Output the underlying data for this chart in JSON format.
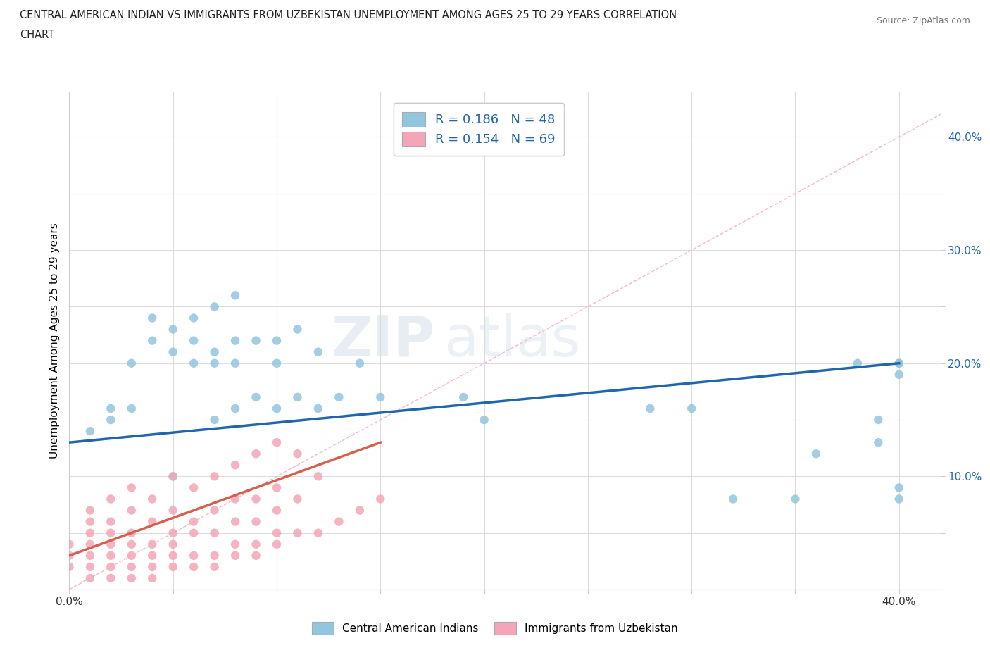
{
  "title_line1": "CENTRAL AMERICAN INDIAN VS IMMIGRANTS FROM UZBEKISTAN UNEMPLOYMENT AMONG AGES 25 TO 29 YEARS CORRELATION",
  "title_line2": "CHART",
  "source_text": "Source: ZipAtlas.com",
  "ylabel": "Unemployment Among Ages 25 to 29 years",
  "xlim": [
    0.0,
    0.42
  ],
  "ylim": [
    0.0,
    0.44
  ],
  "xticks": [
    0.0,
    0.05,
    0.1,
    0.15,
    0.2,
    0.25,
    0.3,
    0.35,
    0.4
  ],
  "yticks": [
    0.0,
    0.05,
    0.1,
    0.15,
    0.2,
    0.25,
    0.3,
    0.35,
    0.4
  ],
  "blue_color": "#92c5de",
  "pink_color": "#f4a6b8",
  "blue_line_color": "#2166ac",
  "pink_line_color": "#d6604d",
  "diag_line_color": "#f4a6b8",
  "legend_blue_label": "R = 0.186   N = 48",
  "legend_pink_label": "R = 0.154   N = 69",
  "bottom_legend_blue": "Central American Indians",
  "bottom_legend_pink": "Immigrants from Uzbekistan",
  "watermark_zip": "ZIP",
  "watermark_atlas": "atlas",
  "blue_scatter_x": [
    0.01,
    0.02,
    0.02,
    0.03,
    0.03,
    0.04,
    0.04,
    0.05,
    0.05,
    0.05,
    0.06,
    0.06,
    0.06,
    0.07,
    0.07,
    0.07,
    0.07,
    0.08,
    0.08,
    0.08,
    0.08,
    0.09,
    0.09,
    0.1,
    0.1,
    0.1,
    0.11,
    0.11,
    0.12,
    0.12,
    0.13,
    0.14,
    0.15,
    0.19,
    0.2,
    0.28,
    0.3,
    0.32,
    0.35,
    0.36,
    0.38,
    0.39,
    0.39,
    0.4,
    0.4,
    0.4,
    0.4,
    0.4
  ],
  "blue_scatter_y": [
    0.14,
    0.15,
    0.16,
    0.16,
    0.2,
    0.22,
    0.24,
    0.1,
    0.21,
    0.23,
    0.2,
    0.22,
    0.24,
    0.15,
    0.2,
    0.21,
    0.25,
    0.16,
    0.2,
    0.22,
    0.26,
    0.17,
    0.22,
    0.16,
    0.2,
    0.22,
    0.17,
    0.23,
    0.16,
    0.21,
    0.17,
    0.2,
    0.17,
    0.17,
    0.15,
    0.16,
    0.16,
    0.08,
    0.08,
    0.12,
    0.2,
    0.13,
    0.15,
    0.08,
    0.09,
    0.19,
    0.2,
    0.2
  ],
  "pink_scatter_x": [
    0.0,
    0.0,
    0.0,
    0.01,
    0.01,
    0.01,
    0.01,
    0.01,
    0.01,
    0.01,
    0.02,
    0.02,
    0.02,
    0.02,
    0.02,
    0.02,
    0.02,
    0.03,
    0.03,
    0.03,
    0.03,
    0.03,
    0.03,
    0.03,
    0.04,
    0.04,
    0.04,
    0.04,
    0.04,
    0.04,
    0.05,
    0.05,
    0.05,
    0.05,
    0.05,
    0.05,
    0.06,
    0.06,
    0.06,
    0.06,
    0.06,
    0.07,
    0.07,
    0.07,
    0.07,
    0.07,
    0.08,
    0.08,
    0.08,
    0.08,
    0.08,
    0.09,
    0.09,
    0.09,
    0.09,
    0.09,
    0.1,
    0.1,
    0.1,
    0.1,
    0.1,
    0.11,
    0.11,
    0.11,
    0.12,
    0.12,
    0.13,
    0.14,
    0.15
  ],
  "pink_scatter_y": [
    0.02,
    0.03,
    0.04,
    0.01,
    0.02,
    0.03,
    0.04,
    0.05,
    0.06,
    0.07,
    0.01,
    0.02,
    0.03,
    0.04,
    0.05,
    0.06,
    0.08,
    0.01,
    0.02,
    0.03,
    0.04,
    0.05,
    0.07,
    0.09,
    0.01,
    0.02,
    0.03,
    0.04,
    0.06,
    0.08,
    0.02,
    0.03,
    0.04,
    0.05,
    0.07,
    0.1,
    0.02,
    0.03,
    0.05,
    0.06,
    0.09,
    0.02,
    0.03,
    0.05,
    0.07,
    0.1,
    0.03,
    0.04,
    0.06,
    0.08,
    0.11,
    0.03,
    0.04,
    0.06,
    0.08,
    0.12,
    0.04,
    0.05,
    0.07,
    0.09,
    0.13,
    0.05,
    0.08,
    0.12,
    0.05,
    0.1,
    0.06,
    0.07,
    0.08
  ],
  "blue_trend_x": [
    0.0,
    0.4
  ],
  "blue_trend_y": [
    0.13,
    0.2
  ],
  "pink_trend_x": [
    0.0,
    0.15
  ],
  "pink_trend_y": [
    0.03,
    0.13
  ],
  "diag_line_x": [
    0.0,
    0.42
  ],
  "diag_line_y": [
    0.0,
    0.42
  ]
}
